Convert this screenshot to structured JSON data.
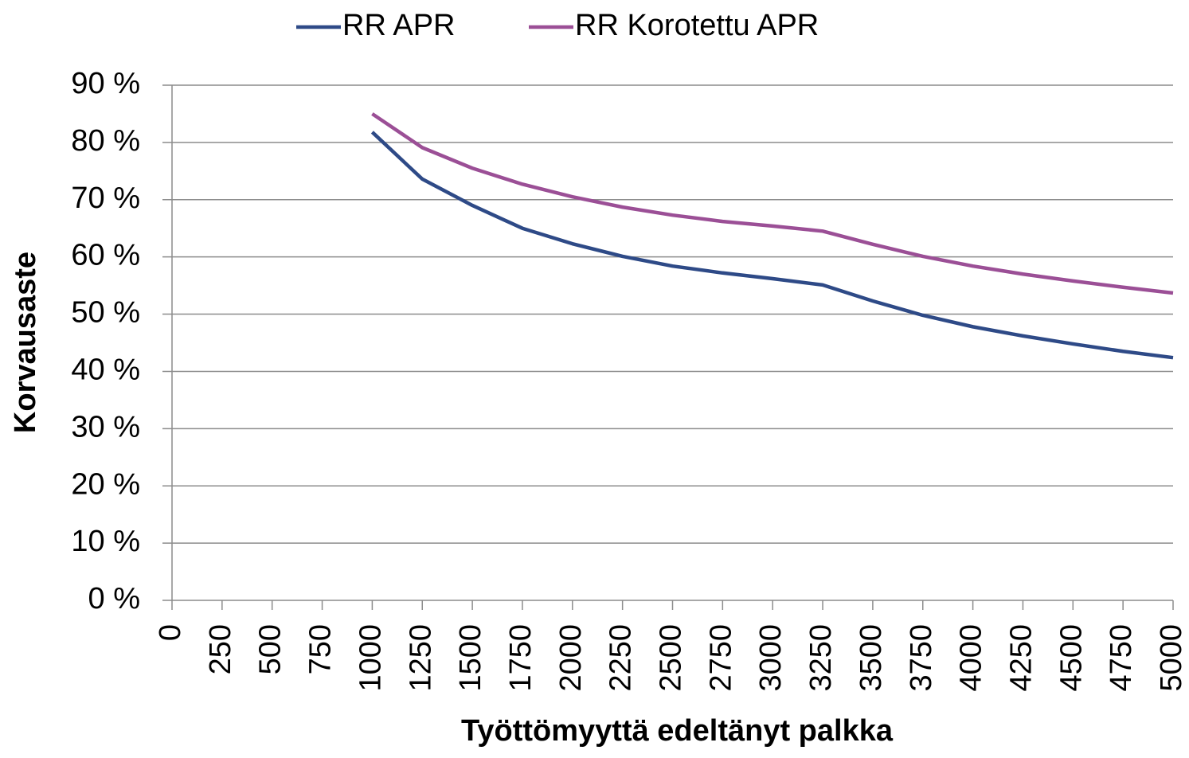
{
  "chart_data": {
    "type": "line",
    "xlabel": "Työttömyyttä edeltänyt palkka",
    "ylabel": "Korvausaste",
    "x": [
      1000,
      1250,
      1500,
      1750,
      2000,
      2250,
      2500,
      2750,
      3000,
      3250,
      3500,
      3750,
      4000,
      4250,
      4500,
      4750,
      5000
    ],
    "series": [
      {
        "name": "RR APR",
        "color": "#2e4a87",
        "values": [
          81.8,
          73.6,
          69,
          65,
          62.3,
          60.1,
          58.4,
          57.2,
          56.2,
          55.1,
          52.3,
          49.8,
          47.8,
          46.2,
          44.8,
          43.5,
          42.4
        ]
      },
      {
        "name": "RR Korotettu APR",
        "color": "#9b4f96",
        "values": [
          85,
          79.1,
          75.5,
          72.7,
          70.5,
          68.7,
          67.3,
          66.2,
          65.4,
          64.5,
          62.2,
          60.1,
          58.4,
          57,
          55.8,
          54.7,
          53.7
        ]
      }
    ],
    "xlim": [
      0,
      5000
    ],
    "xticks": [
      0,
      250,
      500,
      750,
      1000,
      1250,
      1500,
      1750,
      2000,
      2250,
      2500,
      2750,
      3000,
      3250,
      3500,
      3750,
      4000,
      4250,
      4500,
      4750,
      5000
    ],
    "ylim": [
      0,
      90
    ],
    "yticks": [
      {
        "value": 0,
        "label": "0 %"
      },
      {
        "value": 10,
        "label": "10 %"
      },
      {
        "value": 20,
        "label": "20 %"
      },
      {
        "value": 30,
        "label": "30 %"
      },
      {
        "value": 40,
        "label": "40 %"
      },
      {
        "value": 50,
        "label": "50 %"
      },
      {
        "value": 60,
        "label": "60 %"
      },
      {
        "value": 70,
        "label": "70 %"
      },
      {
        "value": 80,
        "label": "80 %"
      },
      {
        "value": 90,
        "label": "90 %"
      }
    ],
    "grid": true,
    "legend": "top"
  }
}
